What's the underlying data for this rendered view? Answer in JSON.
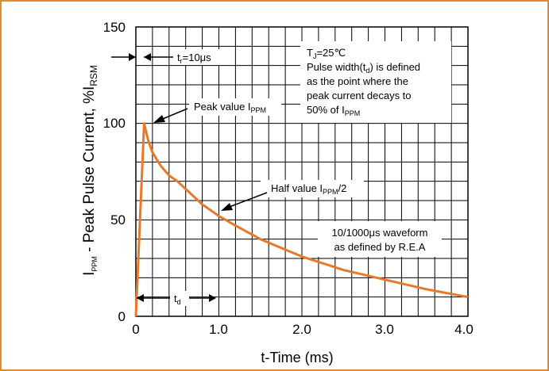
{
  "chart_data": {
    "type": "line",
    "title": "",
    "xlabel": "t-Time (ms)",
    "ylabel": {
      "pre": "I",
      "pre_sub": "PPM",
      "mid": " - Peak Pulse Current, %I",
      "post_sub": "RSM"
    },
    "xlim": [
      0,
      4.0
    ],
    "ylim": [
      0,
      150
    ],
    "x_ticks": [
      {
        "value": 0,
        "label": "0"
      },
      {
        "value": 1.0,
        "label": "1.0"
      },
      {
        "value": 2.0,
        "label": "2.0"
      },
      {
        "value": 3.0,
        "label": "3.0"
      },
      {
        "value": 4.0,
        "label": "4.0"
      }
    ],
    "y_ticks": [
      {
        "value": 0,
        "label": "0"
      },
      {
        "value": 50,
        "label": "50"
      },
      {
        "value": 100,
        "label": "100"
      },
      {
        "value": 150,
        "label": "150"
      }
    ],
    "grid": true,
    "grid_x_step": 0.2,
    "grid_y_step": 10,
    "series": [
      {
        "color": "#e8782a",
        "x": [
          0,
          0.1,
          0.15,
          0.2,
          0.3,
          0.4,
          0.5,
          0.6,
          0.8,
          1.0,
          1.2,
          1.5,
          2.0,
          2.5,
          3.0,
          3.5,
          4.0
        ],
        "y": [
          0,
          100,
          91,
          85,
          78,
          73,
          70,
          66,
          58,
          52,
          47,
          40,
          31,
          24,
          19,
          14,
          10
        ]
      }
    ],
    "annotations": {
      "tr": {
        "pre": "t",
        "sub": "r",
        "post": "=10μs"
      },
      "peak": {
        "pre": "Peak value I",
        "sub": "PPM",
        "post": ""
      },
      "half": {
        "pre": "Half value I",
        "sub": "PPM",
        "post": "/2"
      },
      "td": {
        "pre": "t",
        "sub": "d",
        "post": ""
      },
      "box1": {
        "line1": {
          "pre": "T",
          "sub": "J",
          "post": "=25℃"
        },
        "line2": {
          "pre": "Pulse width(t",
          "sub": "d",
          "post": ") is defined"
        },
        "line3": "as the point where the",
        "line4": "peak current decays to",
        "line5": {
          "pre": "50% of I",
          "sub": "PPM",
          "post": ""
        }
      },
      "box2": {
        "line1": "10/1000μs waveform",
        "line2": "as defined by R.E.A"
      }
    }
  },
  "colors": {
    "frame_border": "#e8872e",
    "curve": "#e8782a",
    "grid": "#000000"
  }
}
